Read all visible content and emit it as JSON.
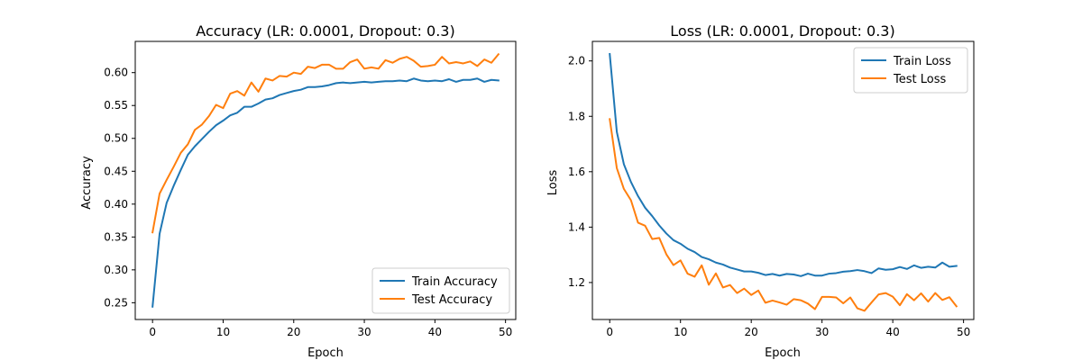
{
  "figure": {
    "background": "#ffffff",
    "series_colors": [
      "#1f77b4",
      "#ff7f0e"
    ]
  },
  "chart_data": [
    {
      "type": "line",
      "title": "Accuracy (LR: 0.0001, Dropout: 0.3)",
      "xlabel": "Epoch",
      "ylabel": "Accuracy",
      "xlim": [
        -2.45,
        51.45
      ],
      "ylim": [
        0.2245,
        0.6475
      ],
      "xticks": [
        0,
        10,
        20,
        30,
        40,
        50
      ],
      "xtick_labels": [
        "0",
        "10",
        "20",
        "30",
        "40",
        "50"
      ],
      "yticks": [
        0.25,
        0.3,
        0.35,
        0.4,
        0.45,
        0.5,
        0.55,
        0.6
      ],
      "ytick_labels": [
        "0.25",
        "0.30",
        "0.35",
        "0.40",
        "0.45",
        "0.50",
        "0.55",
        "0.60"
      ],
      "grid": false,
      "legend_position": "lower-right",
      "x": [
        0,
        1,
        2,
        3,
        4,
        5,
        6,
        7,
        8,
        9,
        10,
        11,
        12,
        13,
        14,
        15,
        16,
        17,
        18,
        19,
        20,
        21,
        22,
        23,
        24,
        25,
        26,
        27,
        28,
        29,
        30,
        31,
        32,
        33,
        34,
        35,
        36,
        37,
        38,
        39,
        40,
        41,
        42,
        43,
        44,
        45,
        46,
        47,
        48,
        49
      ],
      "series": [
        {
          "name": "Train Accuracy",
          "color": "#1f77b4",
          "values": [
            0.244,
            0.355,
            0.402,
            0.428,
            0.452,
            0.475,
            0.488,
            0.499,
            0.51,
            0.52,
            0.527,
            0.535,
            0.539,
            0.548,
            0.548,
            0.553,
            0.559,
            0.561,
            0.566,
            0.569,
            0.572,
            0.574,
            0.578,
            0.578,
            0.579,
            0.581,
            0.584,
            0.585,
            0.584,
            0.585,
            0.586,
            0.585,
            0.586,
            0.587,
            0.587,
            0.588,
            0.587,
            0.591,
            0.588,
            0.587,
            0.588,
            0.587,
            0.59,
            0.586,
            0.589,
            0.589,
            0.591,
            0.586,
            0.589,
            0.588
          ]
        },
        {
          "name": "Test Accuracy",
          "color": "#ff7f0e",
          "values": [
            0.357,
            0.416,
            0.437,
            0.457,
            0.478,
            0.491,
            0.513,
            0.521,
            0.534,
            0.551,
            0.546,
            0.568,
            0.572,
            0.565,
            0.585,
            0.571,
            0.591,
            0.588,
            0.595,
            0.594,
            0.6,
            0.598,
            0.609,
            0.607,
            0.612,
            0.612,
            0.606,
            0.606,
            0.616,
            0.62,
            0.606,
            0.608,
            0.606,
            0.619,
            0.615,
            0.621,
            0.624,
            0.618,
            0.609,
            0.61,
            0.612,
            0.624,
            0.614,
            0.616,
            0.614,
            0.617,
            0.61,
            0.62,
            0.615,
            0.628
          ]
        }
      ]
    },
    {
      "type": "line",
      "title": "Loss (LR: 0.0001, Dropout: 0.3)",
      "xlabel": "Epoch",
      "ylabel": "Loss",
      "xlim": [
        -2.45,
        51.45
      ],
      "ylim": [
        1.0665,
        2.0705
      ],
      "xticks": [
        0,
        10,
        20,
        30,
        40,
        50
      ],
      "xtick_labels": [
        "0",
        "10",
        "20",
        "30",
        "40",
        "50"
      ],
      "yticks": [
        1.2,
        1.4,
        1.6,
        1.8,
        2.0
      ],
      "ytick_labels": [
        "1.2",
        "1.4",
        "1.6",
        "1.8",
        "2.0"
      ],
      "grid": false,
      "legend_position": "upper-right",
      "x": [
        0,
        1,
        2,
        3,
        4,
        5,
        6,
        7,
        8,
        9,
        10,
        11,
        12,
        13,
        14,
        15,
        16,
        17,
        18,
        19,
        20,
        21,
        22,
        23,
        24,
        25,
        26,
        27,
        28,
        29,
        30,
        31,
        32,
        33,
        34,
        35,
        36,
        37,
        38,
        39,
        40,
        41,
        42,
        43,
        44,
        45,
        46,
        47,
        48,
        49
      ],
      "series": [
        {
          "name": "Train Loss",
          "color": "#1f77b4",
          "values": [
            2.025,
            1.744,
            1.627,
            1.563,
            1.512,
            1.47,
            1.44,
            1.406,
            1.377,
            1.353,
            1.34,
            1.322,
            1.31,
            1.292,
            1.284,
            1.272,
            1.265,
            1.254,
            1.247,
            1.24,
            1.24,
            1.235,
            1.227,
            1.231,
            1.225,
            1.231,
            1.229,
            1.223,
            1.232,
            1.225,
            1.225,
            1.232,
            1.234,
            1.239,
            1.241,
            1.245,
            1.241,
            1.234,
            1.251,
            1.246,
            1.248,
            1.256,
            1.249,
            1.262,
            1.253,
            1.257,
            1.254,
            1.272,
            1.257,
            1.26
          ]
        },
        {
          "name": "Test Loss",
          "color": "#ff7f0e",
          "values": [
            1.79,
            1.613,
            1.538,
            1.497,
            1.416,
            1.405,
            1.357,
            1.361,
            1.302,
            1.263,
            1.28,
            1.232,
            1.221,
            1.262,
            1.192,
            1.233,
            1.182,
            1.191,
            1.162,
            1.178,
            1.155,
            1.171,
            1.127,
            1.135,
            1.128,
            1.12,
            1.14,
            1.136,
            1.124,
            1.104,
            1.148,
            1.148,
            1.146,
            1.125,
            1.146,
            1.107,
            1.098,
            1.128,
            1.157,
            1.162,
            1.149,
            1.118,
            1.158,
            1.136,
            1.161,
            1.131,
            1.162,
            1.137,
            1.147,
            1.114
          ]
        }
      ]
    }
  ]
}
